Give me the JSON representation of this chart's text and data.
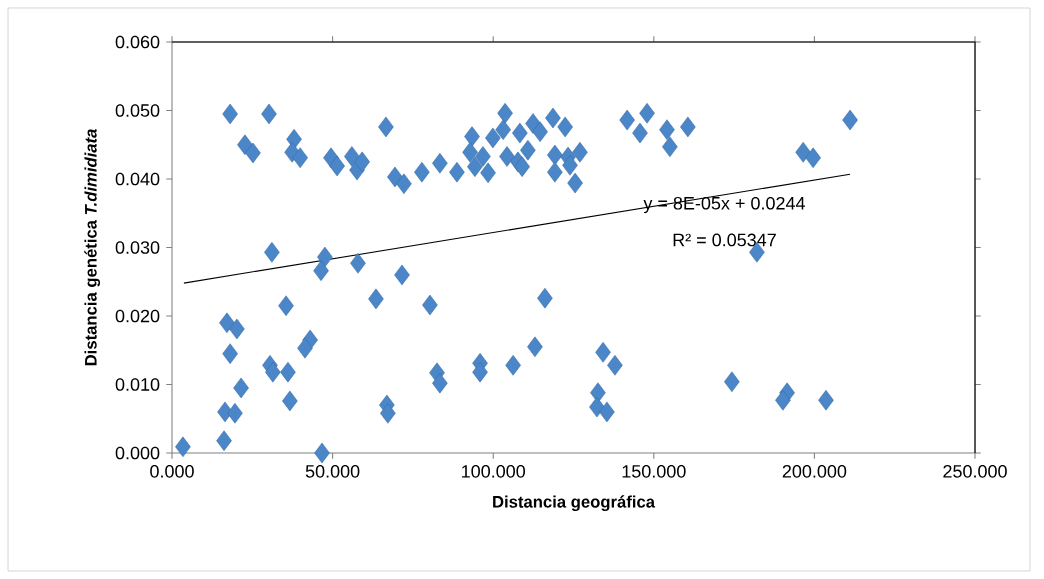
{
  "chart_data": {
    "type": "scatter",
    "xlabel": "Distancia geográfica",
    "ylabel": "Distancia genética *T.dimidiata*",
    "xlim": [
      0,
      250
    ],
    "ylim": [
      0,
      0.06
    ],
    "xticks": [
      {
        "value": 0,
        "label": "0.000"
      },
      {
        "value": 50,
        "label": "50.000"
      },
      {
        "value": 100,
        "label": "100.000"
      },
      {
        "value": 150,
        "label": "150.000"
      },
      {
        "value": 200,
        "label": "200.000"
      },
      {
        "value": 250,
        "label": "250.000"
      }
    ],
    "yticks": [
      {
        "value": 0,
        "label": "0.000"
      },
      {
        "value": 0.01,
        "label": "0.010"
      },
      {
        "value": 0.02,
        "label": "0.020"
      },
      {
        "value": 0.03,
        "label": "0.030"
      },
      {
        "value": 0.04,
        "label": "0.040"
      },
      {
        "value": 0.05,
        "label": "0.050"
      },
      {
        "value": 0.06,
        "label": "0.060"
      }
    ],
    "grid": false,
    "marker": "diamond",
    "series": [
      {
        "color": "#4a86c8",
        "x": [
          18.1,
          30.2,
          22.7,
          25.2,
          38.0,
          37.4,
          39.9,
          49.5,
          51.4,
          56.0,
          57.6,
          59.2,
          66.6,
          69.4,
          72.2,
          77.8,
          83.4,
          31.1,
          47.6,
          46.4,
          57.9,
          71.6,
          63.5,
          35.5,
          80.3,
          17.1,
          20.2,
          18.1,
          43.0,
          41.4,
          30.5,
          31.4,
          36.1,
          21.5,
          36.7,
          66.9,
          67.2,
          16.5,
          19.6,
          3.4,
          16.2,
          46.7,
          82.5,
          83.4,
          88.7,
          93.4,
          92.8,
          94.3,
          96.8,
          98.4,
          99.9,
          103.7,
          103.1,
          104.3,
          108.3,
          107.7,
          109.0,
          110.8,
          112.4,
          114.6,
          118.6,
          122.4,
          119.2,
          119.2,
          123.3,
          127.0,
          125.5,
          123.9,
          141.7,
          147.9,
          145.7,
          154.1,
          155.0,
          160.6,
          116.1,
          95.9,
          95.9,
          106.2,
          113.0,
          134.2,
          137.9,
          132.6,
          132.3,
          135.4,
          211.1,
          196.5,
          199.6,
          182.1,
          174.3,
          191.5,
          190.2,
          203.6
        ],
        "values": [
          0.0495,
          0.0495,
          0.045,
          0.0438,
          0.0458,
          0.0439,
          0.0431,
          0.0431,
          0.0419,
          0.0433,
          0.0413,
          0.0425,
          0.0476,
          0.0403,
          0.0393,
          0.041,
          0.0423,
          0.0293,
          0.0286,
          0.0266,
          0.0277,
          0.026,
          0.0225,
          0.0215,
          0.0216,
          0.019,
          0.0181,
          0.0145,
          0.0165,
          0.0153,
          0.0128,
          0.0118,
          0.0118,
          0.0095,
          0.0076,
          0.007,
          0.0058,
          0.006,
          0.0058,
          0.0009,
          0.0018,
          0.0,
          0.0117,
          0.0102,
          0.041,
          0.0462,
          0.0439,
          0.0418,
          0.0433,
          0.0409,
          0.046,
          0.0496,
          0.0472,
          0.0433,
          0.0467,
          0.0425,
          0.0418,
          0.0442,
          0.0481,
          0.0469,
          0.0489,
          0.0476,
          0.0435,
          0.041,
          0.0432,
          0.0439,
          0.0394,
          0.042,
          0.0486,
          0.0496,
          0.0467,
          0.0472,
          0.0447,
          0.0476,
          0.0226,
          0.0131,
          0.0118,
          0.0128,
          0.0155,
          0.0147,
          0.0128,
          0.0088,
          0.0067,
          0.006,
          0.0486,
          0.0439,
          0.0431,
          0.0293,
          0.0104,
          0.0088,
          0.0077,
          0.0077
        ]
      },
      {
        "type": "line",
        "color": "#000000",
        "marker": "none",
        "x": [
          3.7,
          211.1
        ],
        "values": [
          0.0248,
          0.0407
        ]
      }
    ],
    "annotations": [
      "y = 8E-05x + 0.0244",
      "R² = 0.05347"
    ]
  }
}
